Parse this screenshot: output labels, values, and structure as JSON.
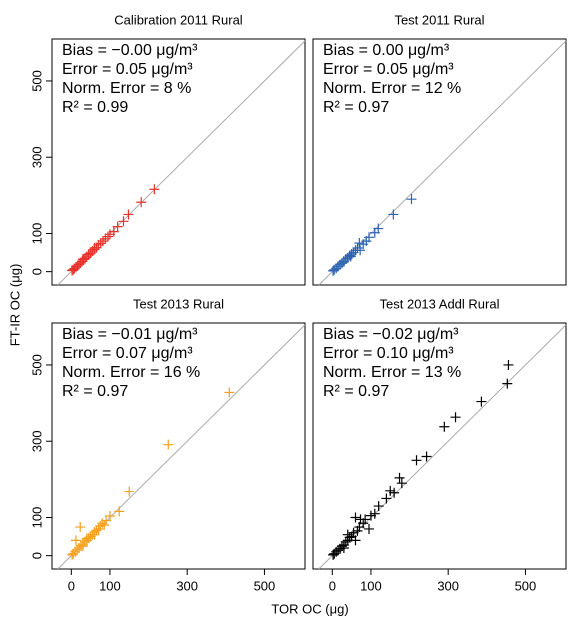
{
  "chart_data": [
    {
      "type": "scatter",
      "title": "Calibration 2011 Rural",
      "color": "#e8332a",
      "annotations": [
        "Bias = −0.00 μg/m³",
        "Error = 0.05 μg/m³",
        "Norm. Error = 8 %",
        "R² = 0.99"
      ],
      "xlim": [
        -50,
        605
      ],
      "ylim": [
        -35,
        610
      ],
      "yticks": [
        0,
        100,
        300,
        500
      ],
      "x": [
        215,
        181,
        148,
        135,
        120,
        110,
        100,
        95,
        88,
        82,
        76,
        70,
        65,
        60,
        55,
        50,
        45,
        40,
        36,
        32,
        28,
        24,
        20,
        16,
        12,
        8,
        5,
        2,
        30,
        45,
        60
      ],
      "values": [
        216,
        182,
        150,
        132,
        118,
        105,
        98,
        92,
        86,
        80,
        74,
        70,
        63,
        58,
        54,
        49,
        44,
        39,
        35,
        32,
        27,
        23,
        19,
        15,
        12,
        8,
        5,
        3,
        33,
        46,
        62
      ]
    },
    {
      "type": "scatter",
      "title": "Test 2011 Rural",
      "color": "#2d62b0",
      "annotations": [
        "Bias = 0.00 μg/m³",
        "Error = 0.05 μg/m³",
        "Norm. Error = 12 %",
        "R² = 0.97"
      ],
      "xlim": [
        -50,
        605
      ],
      "ylim": [
        -35,
        610
      ],
      "x": [
        205,
        158,
        119,
        110,
        95,
        88,
        80,
        72,
        65,
        60,
        55,
        50,
        45,
        40,
        35,
        30,
        25,
        20,
        15,
        10,
        5,
        2,
        70,
        48,
        30
      ],
      "values": [
        190,
        150,
        113,
        102,
        90,
        80,
        72,
        56,
        62,
        56,
        50,
        46,
        42,
        36,
        33,
        28,
        22,
        18,
        14,
        9,
        5,
        2,
        75,
        40,
        26
      ]
    },
    {
      "type": "scatter",
      "title": "Test 2013 Rural",
      "color": "#f5a11f",
      "annotations": [
        "Bias = −0.01 μg/m³",
        "Error = 0.07 μg/m³",
        "Norm. Error = 16 %",
        "R² = 0.97"
      ],
      "xlim": [
        -50,
        605
      ],
      "ylim": [
        -35,
        610
      ],
      "xticks": [
        0,
        100,
        300,
        500
      ],
      "yticks": [
        0,
        100,
        300,
        500
      ],
      "x": [
        409,
        251,
        150,
        124,
        23,
        100,
        90,
        80,
        75,
        70,
        65,
        60,
        55,
        50,
        45,
        40,
        35,
        30,
        25,
        20,
        15,
        10,
        5,
        2,
        85,
        60,
        40,
        30,
        12
      ],
      "values": [
        428,
        291,
        168,
        116,
        75,
        104,
        92,
        85,
        78,
        70,
        66,
        62,
        55,
        50,
        46,
        40,
        36,
        30,
        26,
        20,
        15,
        10,
        5,
        2,
        80,
        55,
        45,
        25,
        40
      ]
    },
    {
      "type": "scatter",
      "title": "Test 2013 Addl Rural",
      "color": "#000000",
      "annotations": [
        "Bias = −0.02 μg/m³",
        "Error = 0.10 μg/m³",
        "Norm. Error = 13 %",
        "R² = 0.97"
      ],
      "xlim": [
        -50,
        605
      ],
      "ylim": [
        -35,
        610
      ],
      "xticks": [
        0,
        100,
        300,
        500
      ],
      "x": [
        456,
        453,
        386,
        319,
        290,
        244,
        218,
        174,
        180,
        150,
        73,
        60,
        80,
        95,
        70,
        65,
        55,
        50,
        45,
        40,
        35,
        30,
        25,
        20,
        15,
        10,
        5,
        2,
        100,
        85,
        110,
        120,
        60,
        40,
        30,
        140,
        160
      ],
      "values": [
        500,
        451,
        404,
        363,
        338,
        260,
        250,
        204,
        190,
        170,
        95,
        100,
        85,
        70,
        75,
        65,
        60,
        50,
        48,
        40,
        36,
        28,
        25,
        18,
        14,
        10,
        5,
        2,
        105,
        95,
        110,
        130,
        40,
        55,
        20,
        150,
        165
      ]
    }
  ],
  "xlabel": "TOR OC (μg)",
  "ylabel": "FT-IR OC (μg)"
}
